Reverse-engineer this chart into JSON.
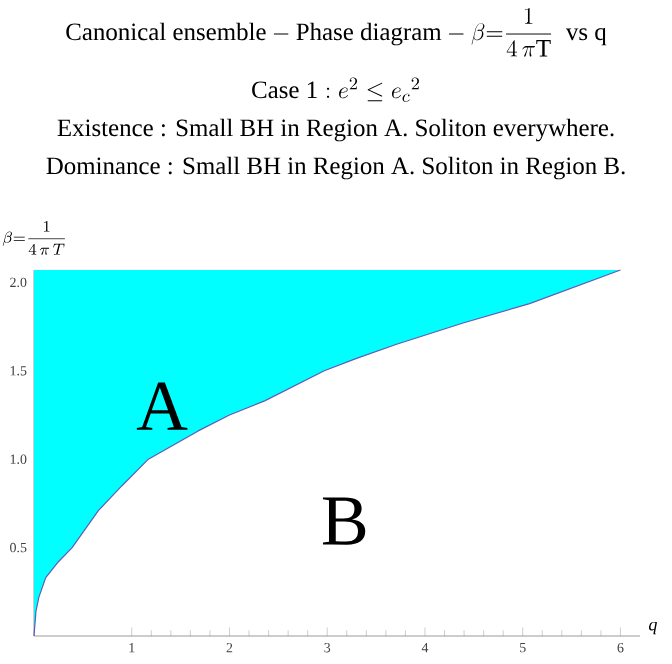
{
  "chart_data": {
    "type": "line",
    "title": "\\text{Canonical ensemble} - \\text{Phase diagram} - \\beta{=}\\dfrac{1}{4\\,\\pi\\mathrm{T}}\\ \\text{ vs q}",
    "subtitle": "\\text{Case 1} : e^2 \\le {e_c}^2",
    "xlabel": "q",
    "ylabel": "\\beta{=}\\dfrac{1}{4\\,\\pi\\, T}",
    "xlim": [
      0,
      6.2
    ],
    "ylim": [
      0,
      2.07
    ],
    "xticks": [
      1,
      2,
      3,
      4,
      5,
      6
    ],
    "yticks": [
      0.5,
      {
        "value": 1,
        "label": "1.0"
      },
      1.5,
      {
        "value": 2,
        "label": "2.0"
      }
    ],
    "series": [
      {
        "color": "#5c5cb8",
        "x": [
          0,
          0.02,
          0.05,
          0.12,
          0.25,
          0.39,
          0.66,
          0.9,
          1.17,
          1.68,
          2.0,
          2.36,
          2.97,
          3.3,
          3.71,
          4.39,
          5.07,
          6
        ],
        "values": [
          0,
          0.14,
          0.22,
          0.33,
          0.42,
          0.5,
          0.71,
          0.85,
          1.0,
          1.16,
          1.25,
          1.33,
          1.5,
          1.57,
          1.65,
          1.77,
          1.88,
          2.07
        ],
        "lower": [
          0,
          0.14,
          0.22,
          0.33,
          0.42,
          0.5,
          0.71,
          0.85,
          1.0,
          1.16,
          1.25,
          1.33,
          1.5,
          1.57,
          1.65,
          1.77,
          1.88,
          2.07
        ],
        "upper": [
          2.07,
          2.07,
          2.07,
          2.07,
          2.07,
          2.07,
          2.07,
          2.07,
          2.07,
          2.07,
          2.07,
          2.07,
          2.07,
          2.07,
          2.07,
          2.07,
          2.07,
          2.07
        ]
      }
    ],
    "annotations": [
      "Existence : Small  BH in Region A. Soliton everywhere.",
      "Dominance : Small BH in Region A. Soliton in Region B.",
      "A",
      "B"
    ]
  }
}
